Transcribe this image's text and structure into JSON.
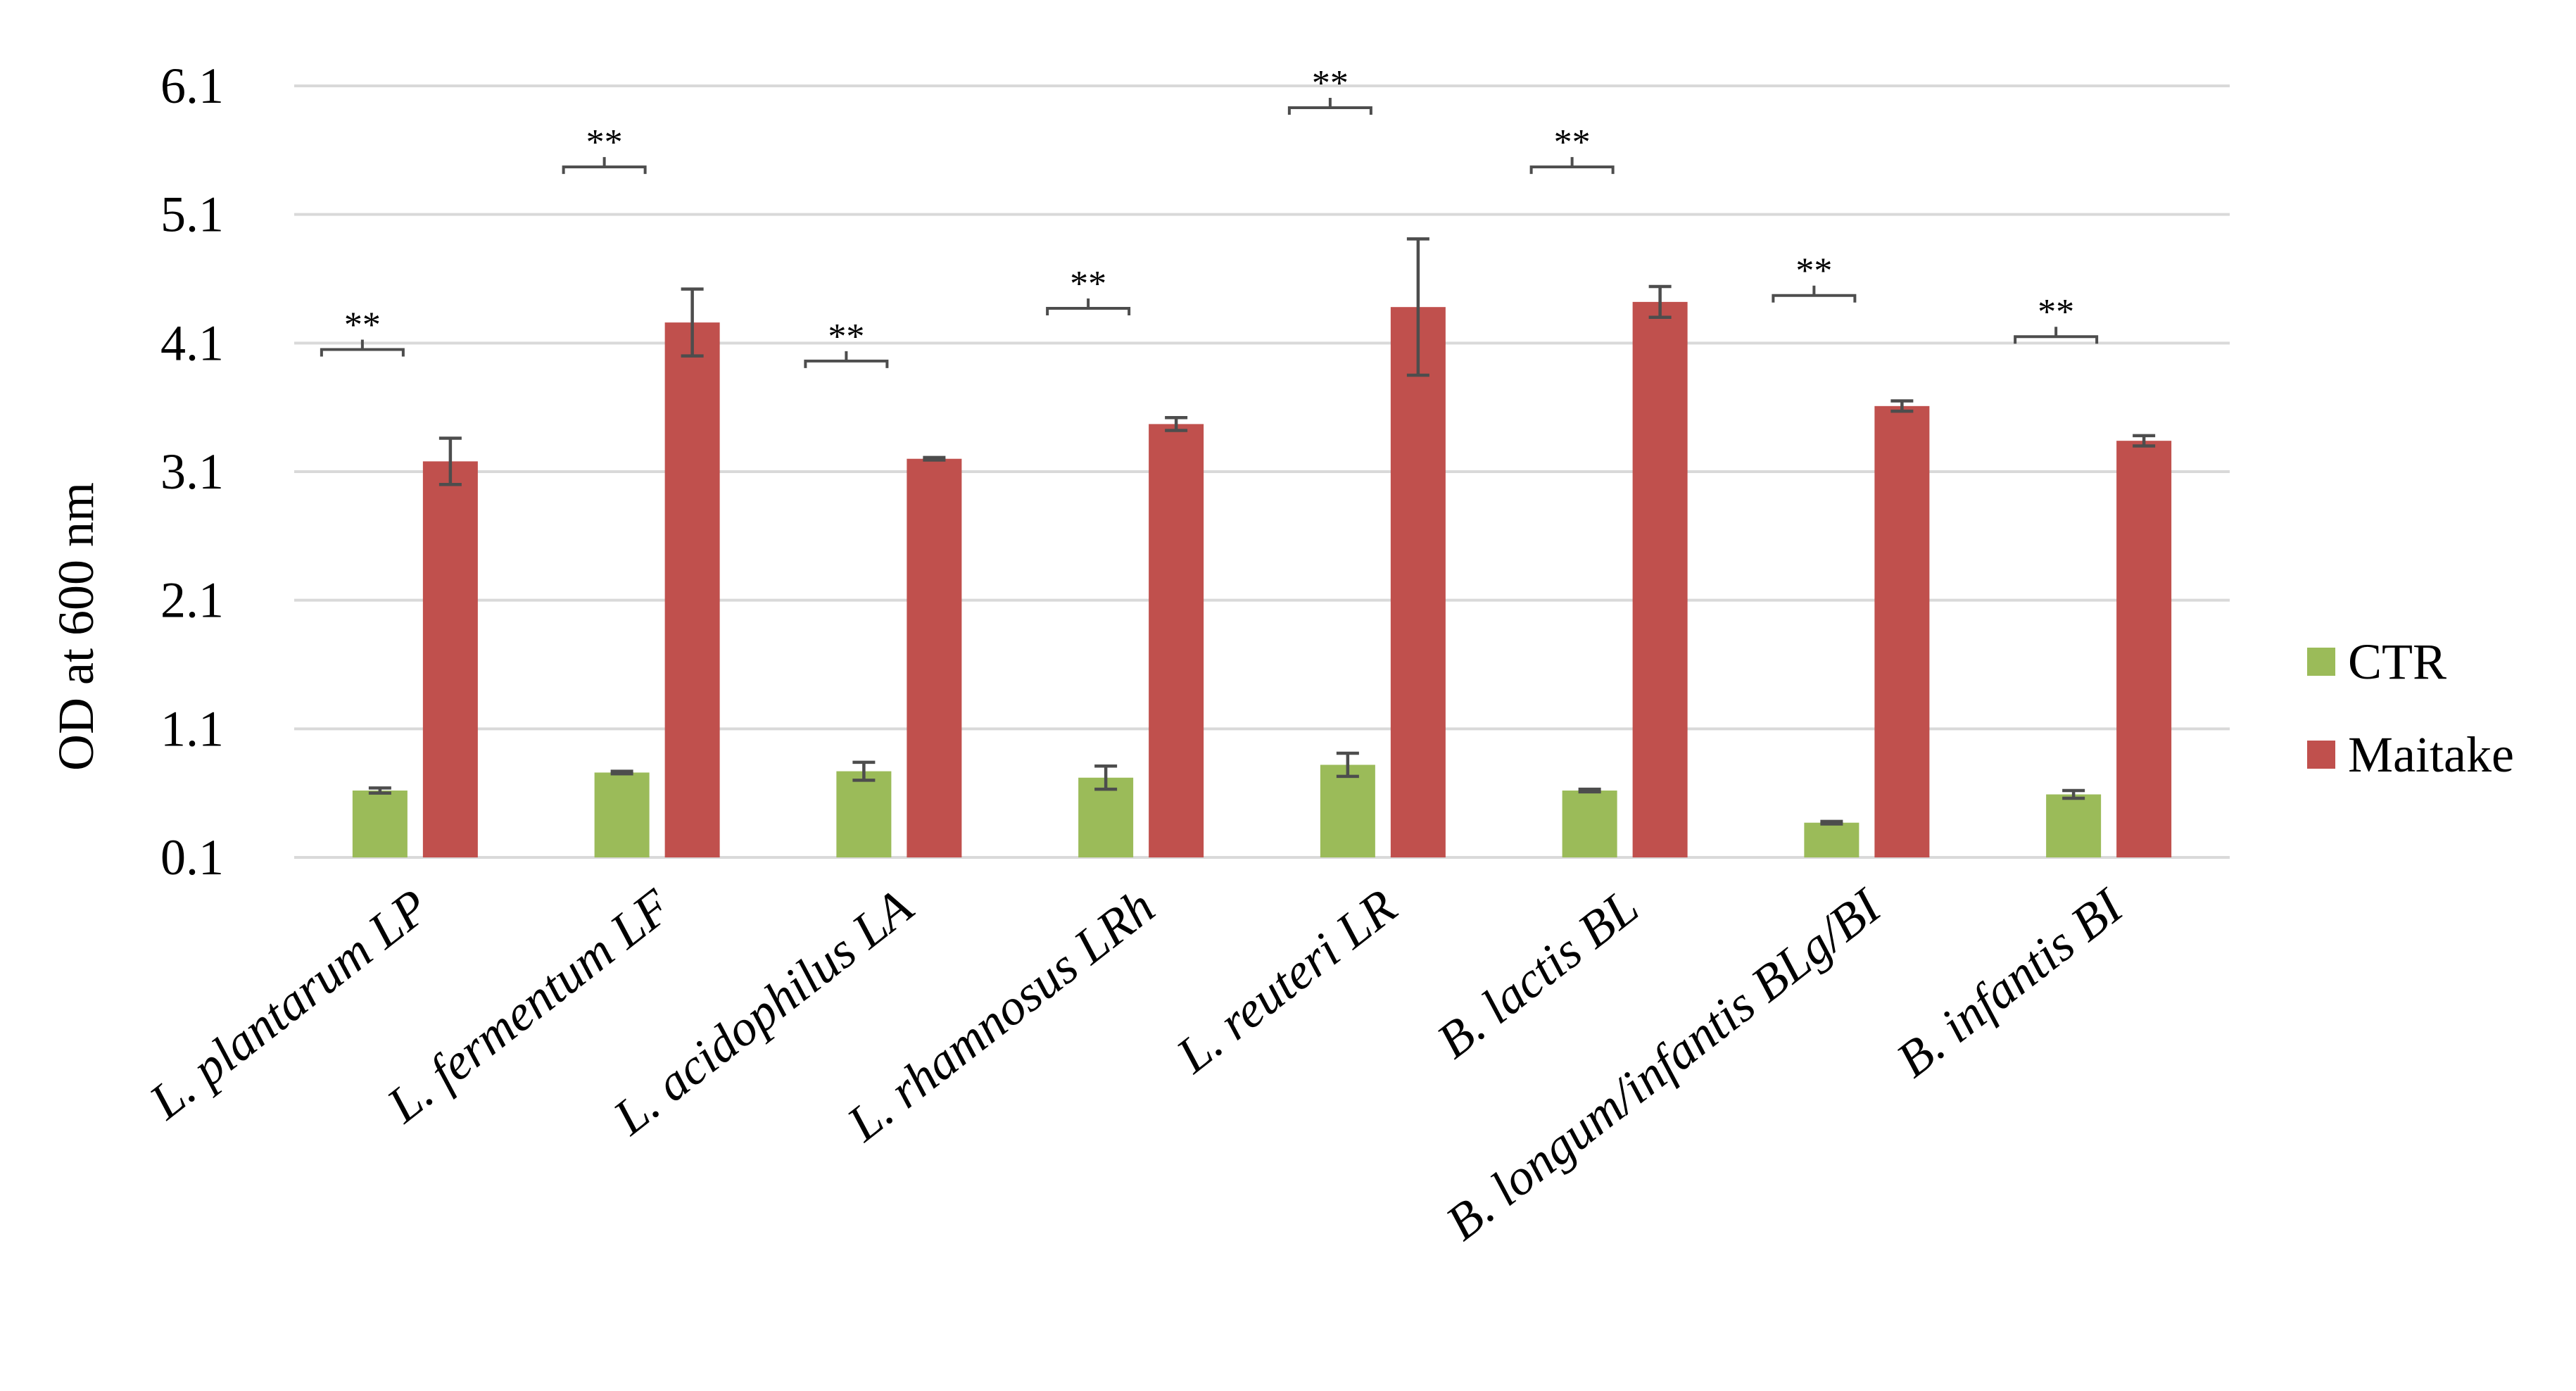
{
  "chart_data": {
    "type": "bar",
    "ylabel": "OD at 600 nm",
    "xlabel": "",
    "title": "",
    "ylim": [
      0.1,
      6.1
    ],
    "yticks": [
      "0.1",
      "1.1",
      "2.1",
      "3.1",
      "4.1",
      "5.1",
      "6.1"
    ],
    "categories": [
      "L. plantarum LP",
      "L. fermentum LF",
      "L. acidophilus LA",
      "L. rhamnosus LRh",
      "L. reuteri LR",
      "B. lactis BL",
      "B. longum/infantis BLg/BI",
      "B. infantis BI"
    ],
    "series": [
      {
        "name": "CTR",
        "color": "#9bbb59",
        "values": [
          0.62,
          0.76,
          0.77,
          0.72,
          0.82,
          0.62,
          0.37,
          0.59
        ],
        "errors": [
          0.02,
          0.01,
          0.07,
          0.09,
          0.09,
          0.01,
          0.01,
          0.03
        ]
      },
      {
        "name": "Maitake",
        "color": "#c0504d",
        "values": [
          3.18,
          4.26,
          3.2,
          3.47,
          4.38,
          4.42,
          3.61,
          3.34
        ],
        "errors": [
          0.18,
          0.26,
          0.01,
          0.05,
          0.53,
          0.12,
          0.04,
          0.04
        ]
      }
    ],
    "significance": [
      "**",
      "**",
      "**",
      "**",
      "**",
      "**",
      "**",
      "**"
    ],
    "significance_levels": [
      4.05,
      5.47,
      3.96,
      4.37,
      5.93,
      5.47,
      4.47,
      4.15
    ],
    "legend_position": "right",
    "grid": true
  }
}
